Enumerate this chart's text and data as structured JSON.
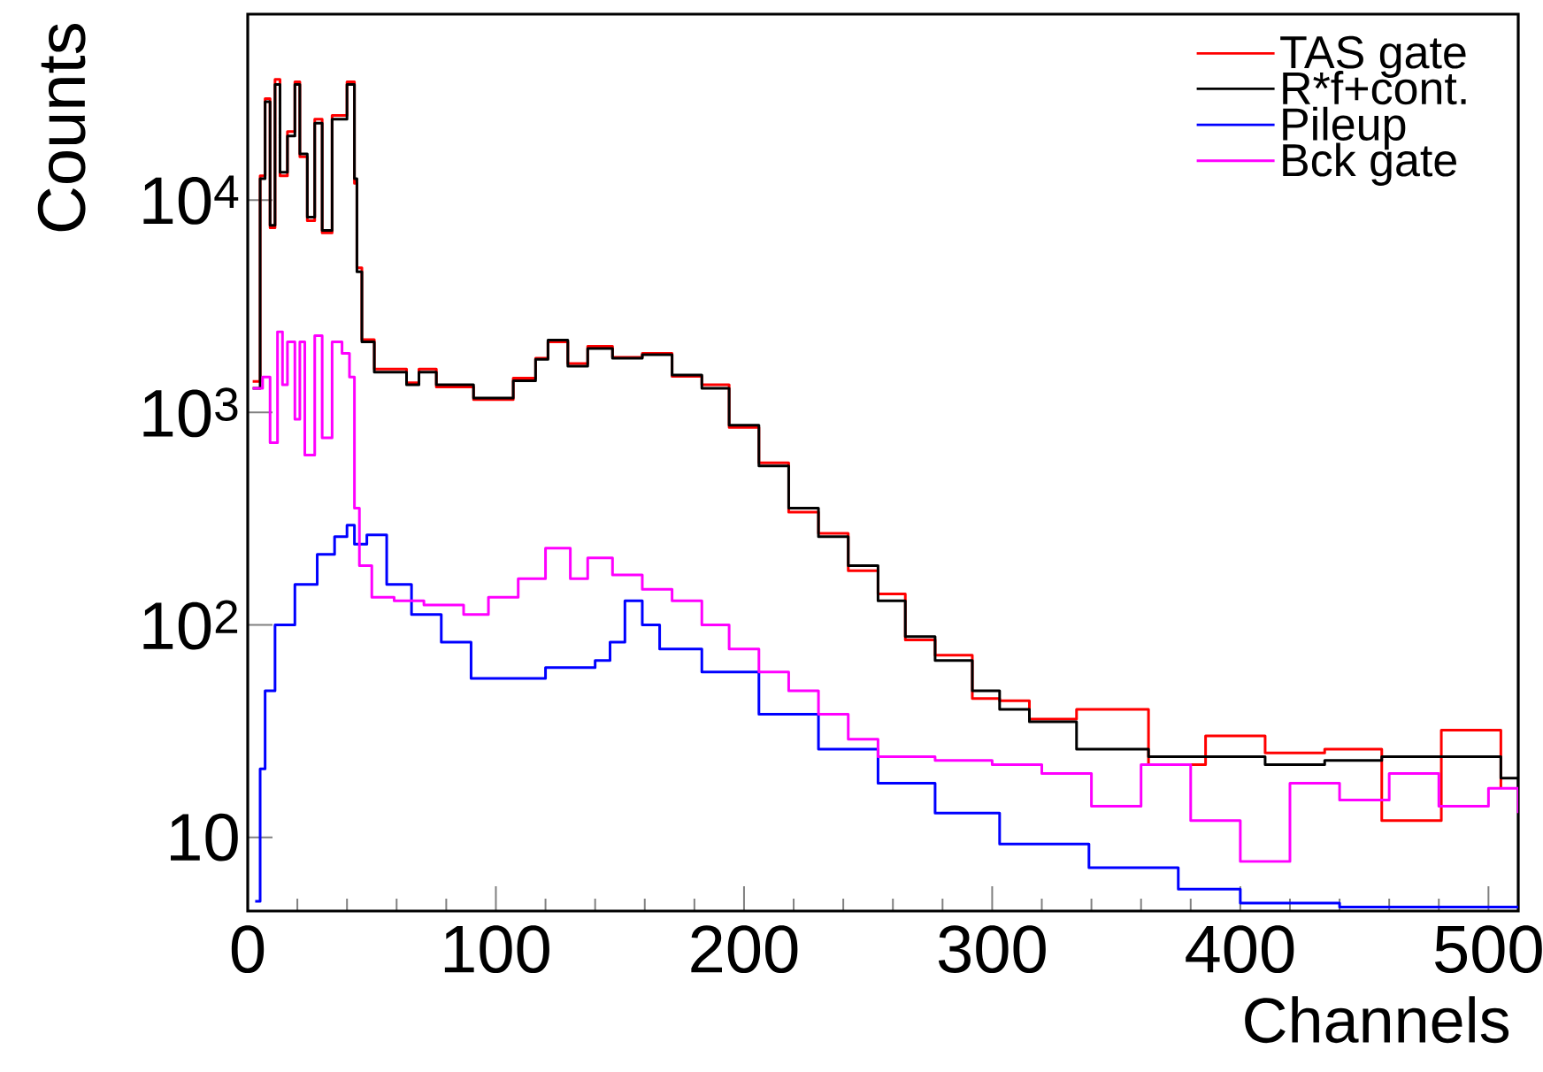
{
  "chart_data": {
    "type": "step",
    "xlabel": "Channels",
    "ylabel": "Counts",
    "log": "y",
    "grid": false,
    "legend": "top right",
    "xlim": [
      0,
      512
    ],
    "ylim": [
      4.5,
      75000
    ],
    "xticks": [
      0,
      100,
      200,
      300,
      400,
      500
    ],
    "yticks": [
      10,
      {
        "value": 100,
        "label": "10$^{2}$"
      },
      {
        "value": 1000,
        "label": "10$^{3}$"
      },
      {
        "value": 10000,
        "label": "10$^{4}$"
      }
    ],
    "series": [
      {
        "name": "TAS gate",
        "color": "#ff0000",
        "x": [
          2,
          5,
          7,
          9,
          11,
          13,
          16,
          19,
          21,
          24,
          27,
          30,
          34,
          40,
          43,
          44,
          46,
          51,
          64,
          69,
          76,
          91,
          107,
          116,
          121,
          129,
          137,
          147,
          159,
          171,
          183,
          194,
          206,
          218,
          230,
          242,
          254,
          265,
          277,
          292,
          303,
          315,
          334,
          363,
          386,
          410,
          434,
          457,
          481,
          505
        ],
        "values": [
          1400,
          13000,
          30000,
          7400,
          37000,
          13000,
          21000,
          36000,
          16000,
          8000,
          24000,
          7000,
          25000,
          36000,
          12000,
          4800,
          2200,
          1600,
          1380,
          1600,
          1320,
          1150,
          1450,
          1800,
          2150,
          1700,
          2050,
          1820,
          1900,
          1480,
          1350,
          850,
          580,
          340,
          270,
          180,
          140,
          85,
          72,
          45,
          44,
          36,
          40,
          22,
          30,
          25,
          26,
          12,
          32,
          17
        ]
      },
      {
        "name": "R*f+cont.",
        "color": "#000000",
        "x": [
          2,
          5,
          7,
          9,
          11,
          13,
          16,
          19,
          21,
          24,
          27,
          30,
          34,
          40,
          43,
          44,
          46,
          51,
          64,
          69,
          76,
          91,
          107,
          116,
          121,
          129,
          137,
          147,
          159,
          171,
          183,
          194,
          206,
          218,
          230,
          242,
          254,
          265,
          277,
          292,
          303,
          315,
          334,
          363,
          386,
          410,
          434,
          457,
          481,
          505,
          512
        ],
        "values": [
          1300,
          12600,
          29000,
          7600,
          35000,
          13500,
          20000,
          35000,
          16500,
          8300,
          23000,
          7200,
          24000,
          35000,
          12600,
          4600,
          2150,
          1550,
          1350,
          1550,
          1350,
          1170,
          1410,
          1780,
          2190,
          1650,
          2000,
          1800,
          1870,
          1500,
          1300,
          870,
          560,
          355,
          260,
          190,
          130,
          88,
          68,
          49,
          40,
          35,
          26,
          24,
          24,
          22,
          23,
          24,
          24,
          19,
          17
        ]
      },
      {
        "name": "Pileup",
        "color": "#0000ff",
        "x": [
          3,
          5,
          7,
          11,
          19,
          28,
          35,
          40,
          43,
          48,
          56,
          66,
          78,
          90,
          103,
          120,
          140,
          146,
          152,
          159,
          166,
          183,
          206,
          230,
          254,
          277,
          303,
          339,
          375,
          400,
          440,
          480,
          512
        ],
        "values": [
          5,
          21,
          49,
          100,
          155,
          215,
          260,
          295,
          240,
          265,
          155,
          112,
          83,
          56,
          56,
          63,
          68,
          83,
          130,
          100,
          77,
          60,
          38,
          26,
          18,
          13,
          9.3,
          7.2,
          5.7,
          4.9,
          4.7,
          4.7,
          4.7
        ]
      },
      {
        "name": "Bck gate",
        "color": "#ff00ff",
        "x": [
          2,
          6,
          9,
          12,
          14,
          16,
          19,
          21,
          23,
          27,
          30,
          34,
          38,
          41,
          43,
          45,
          50,
          59,
          71,
          87,
          97,
          109,
          120,
          130,
          137,
          147,
          159,
          171,
          183,
          194,
          206,
          218,
          230,
          242,
          254,
          277,
          300,
          320,
          340,
          360,
          380,
          400,
          420,
          440,
          460,
          480,
          500,
          512
        ],
        "values": [
          1300,
          1470,
          720,
          2400,
          1350,
          2150,
          930,
          2150,
          630,
          2300,
          760,
          2150,
          1900,
          1470,
          355,
          190,
          135,
          130,
          124,
          112,
          135,
          165,
          230,
          165,
          207,
          172,
          147,
          130,
          100,
          77,
          60,
          49,
          38,
          29,
          24,
          23,
          22,
          20,
          14,
          22,
          12,
          7.7,
          18,
          15,
          20,
          14,
          17,
          13
        ]
      }
    ]
  }
}
